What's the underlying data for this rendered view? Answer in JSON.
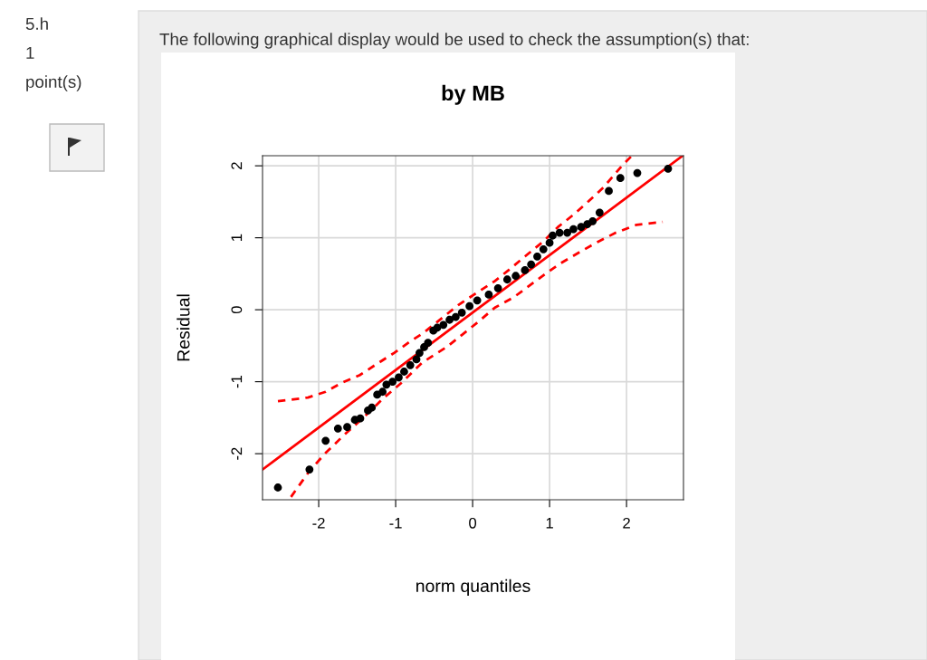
{
  "chart_data": {
    "type": "scatter",
    "title": "by MB",
    "xlabel": "norm quantiles",
    "ylabel": "Residual",
    "annotations": [
      "5.h",
      "1",
      "point(s)",
      "The following graphical display would be used to check the assumption(s) that:"
    ],
    "xlim": [
      -2.73,
      2.74
    ],
    "ylim": [
      -2.64,
      2.14
    ],
    "xticks": [
      -2,
      -1,
      0,
      1,
      2
    ],
    "yticks": [
      -2,
      -1,
      0,
      1,
      2
    ],
    "grid": true,
    "series": [
      {
        "type": "line",
        "color": "#ff0000",
        "line_style": "dashed",
        "marker": "none",
        "x": [
          -2.53,
          -2.14,
          -1.91,
          -1.71,
          -1.47,
          -1.24,
          -1.02,
          -0.81,
          -0.65,
          -0.18,
          0.06,
          0.29,
          0.49,
          0.68,
          0.92,
          1.11,
          1.31,
          1.51,
          1.7,
          1.94,
          2.07
        ],
        "values": [
          -1.27,
          -1.22,
          -1.14,
          -1.02,
          -0.91,
          -0.75,
          -0.6,
          -0.44,
          -0.33,
          0.07,
          0.24,
          0.4,
          0.57,
          0.74,
          0.95,
          1.15,
          1.32,
          1.51,
          1.7,
          2.0,
          2.14
        ]
      },
      {
        "type": "line",
        "color": "#ff0000",
        "line_style": "dashed",
        "marker": "none",
        "x": [
          -2.36,
          -2.12,
          -1.91,
          -1.67,
          -1.4,
          -1.16,
          -0.93,
          -0.65,
          -0.34,
          0.06,
          0.29,
          0.53,
          0.72,
          0.96,
          1.15,
          1.39,
          1.62,
          1.86,
          2.13,
          2.47
        ],
        "values": [
          -2.6,
          -2.24,
          -1.99,
          -1.74,
          -1.48,
          -1.23,
          -1.02,
          -0.73,
          -0.52,
          -0.18,
          0.03,
          0.17,
          0.32,
          0.51,
          0.65,
          0.8,
          0.94,
          1.07,
          1.18,
          1.22
        ]
      },
      {
        "type": "line",
        "color": "#ff0000",
        "line_style": "solid",
        "marker": "none",
        "x": [
          -2.73,
          2.73
        ],
        "values": [
          -2.22,
          2.14
        ]
      },
      {
        "color": "#000000",
        "marker": "circle",
        "x": [
          -2.53,
          -2.12,
          -1.91,
          -1.75,
          -1.63,
          -1.53,
          -1.46,
          -1.36,
          -1.31,
          -1.24,
          -1.17,
          -1.12,
          -1.04,
          -0.96,
          -0.89,
          -0.81,
          -0.73,
          -0.69,
          -0.63,
          -0.58,
          -0.51,
          -0.46,
          -0.38,
          -0.3,
          -0.22,
          -0.14,
          -0.04,
          0.06,
          0.21,
          0.33,
          0.45,
          0.56,
          0.68,
          0.76,
          0.84,
          0.92,
          1.0,
          1.04,
          1.13,
          1.23,
          1.31,
          1.41,
          1.49,
          1.56,
          1.65,
          1.77,
          1.92,
          2.14,
          2.54
        ],
        "values": [
          -2.47,
          -2.22,
          -1.82,
          -1.65,
          -1.63,
          -1.53,
          -1.51,
          -1.4,
          -1.36,
          -1.18,
          -1.14,
          -1.04,
          -1.0,
          -0.94,
          -0.86,
          -0.77,
          -0.69,
          -0.6,
          -0.52,
          -0.46,
          -0.29,
          -0.25,
          -0.21,
          -0.14,
          -0.1,
          -0.04,
          0.05,
          0.13,
          0.21,
          0.3,
          0.42,
          0.47,
          0.55,
          0.63,
          0.74,
          0.84,
          0.93,
          1.03,
          1.07,
          1.07,
          1.12,
          1.15,
          1.19,
          1.23,
          1.35,
          1.65,
          1.83,
          1.9,
          1.96
        ]
      }
    ]
  }
}
